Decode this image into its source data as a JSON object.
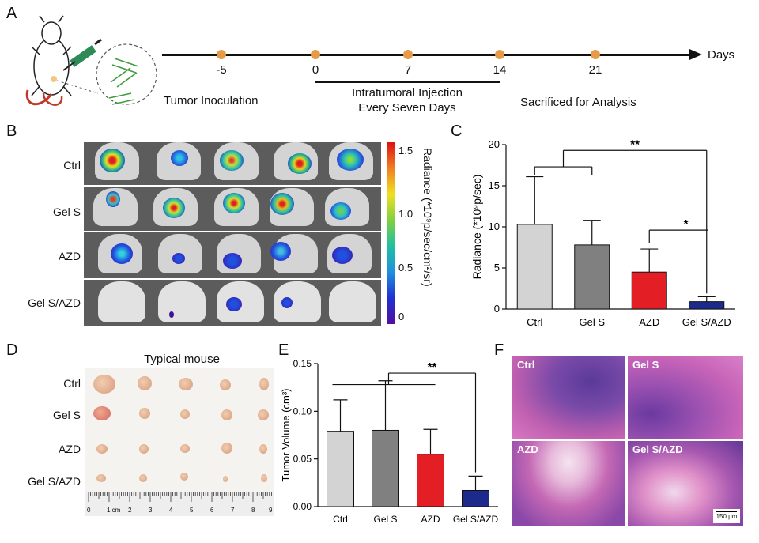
{
  "panels": {
    "a": "A",
    "b": "B",
    "c": "C",
    "d": "D",
    "e": "E",
    "f": "F"
  },
  "timeline": {
    "days_label": "Days",
    "ticks": [
      "-5",
      "0",
      "7",
      "14",
      "21"
    ],
    "events": {
      "inoculation": "Tumor Inoculation",
      "injection_line1": "Intratumoral Injection",
      "injection_line2": "Every Seven Days",
      "sacrifice": "Sacrificed for Analysis"
    }
  },
  "ivis": {
    "row_labels": [
      "Ctrl",
      "Gel S",
      "AZD",
      "Gel S/AZD"
    ],
    "colorbar_label": "Radiance (*10⁹p/sec/cm²/sr)",
    "colorbar_ticks": [
      "1.5",
      "1.0",
      "0.5",
      "0"
    ]
  },
  "typical_mouse": {
    "title": "Typical mouse",
    "row_labels": [
      "Ctrl",
      "Gel S",
      "AZD",
      "Gel S/AZD"
    ],
    "ruler_numbers": [
      "0",
      "1 cm",
      "2",
      "3",
      "4",
      "5",
      "6",
      "7",
      "8",
      "9"
    ]
  },
  "he": {
    "labels": [
      "Ctrl",
      "Gel S",
      "AZD",
      "Gel S/AZD"
    ],
    "scale_bar": "150 μm"
  },
  "colors": {
    "ctrl": "#d3d3d3",
    "gels": "#808080",
    "azd": "#e31e24",
    "gelsazd": "#1c2a8c",
    "timeline_dot": "#e59b47"
  },
  "chart_data": [
    {
      "type": "bar",
      "panel": "C",
      "categories": [
        "Ctrl",
        "Gel S",
        "AZD",
        "Gel S/AZD"
      ],
      "values": [
        10.3,
        7.8,
        4.5,
        0.9
      ],
      "errors": [
        5.8,
        3.0,
        2.8,
        0.6
      ],
      "ylabel": "Radiance (*10⁹p/sec)",
      "ylim": [
        0,
        20
      ],
      "yticks": [
        "0",
        "5",
        "10",
        "15",
        "20"
      ],
      "significance": [
        "**",
        "*"
      ]
    },
    {
      "type": "bar",
      "panel": "E",
      "categories": [
        "Ctrl",
        "Gel S",
        "AZD",
        "Gel S/AZD"
      ],
      "values": [
        0.079,
        0.08,
        0.055,
        0.017
      ],
      "errors": [
        0.033,
        0.052,
        0.026,
        0.015
      ],
      "ylabel": "Tumor Volume (cm³)",
      "ylim": [
        0,
        0.15
      ],
      "yticks": [
        "0.00",
        "0.05",
        "0.10",
        "0.15"
      ],
      "significance": [
        "**"
      ]
    }
  ]
}
